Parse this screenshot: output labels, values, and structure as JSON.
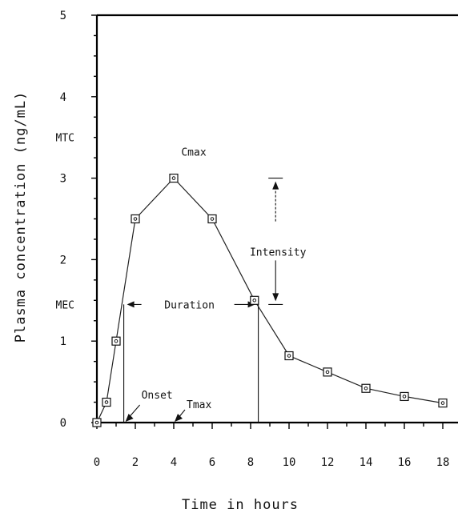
{
  "chart_data": {
    "type": "line",
    "title": "",
    "xlabel": "Time in hours",
    "ylabel": "Plasma concentration (ng/mL)",
    "xlim": [
      0,
      18
    ],
    "ylim": [
      0,
      5
    ],
    "x_ticks": [
      0,
      2,
      4,
      6,
      8,
      10,
      12,
      14,
      16,
      18
    ],
    "y_ticks": [
      0,
      1,
      2,
      3,
      4,
      5
    ],
    "grid": false,
    "series": [
      {
        "x": [
          0,
          0.5,
          1,
          2,
          4,
          6,
          8.2,
          10,
          12,
          14,
          16,
          18
        ],
        "y": [
          0,
          0.25,
          1.0,
          2.5,
          3.0,
          2.5,
          1.5,
          0.82,
          0.62,
          0.42,
          0.32,
          0.24
        ]
      }
    ],
    "annotations": {
      "mtc": {
        "label": "MTC",
        "y": 3.5
      },
      "mec": {
        "label": "MEC",
        "y": 1.45
      },
      "cmax": {
        "label": "Cmax",
        "x": 4,
        "y": 3.0
      },
      "duration": {
        "label": "Duration",
        "x_start": 1.4,
        "x_end": 8.4,
        "y": 1.45
      },
      "intensity": {
        "label": "Intensity",
        "x": 9.3,
        "y_top": 3.0,
        "y_bottom": 1.45
      },
      "onset": {
        "label": "Onset",
        "x": 1.4
      },
      "tmax": {
        "label": "Tmax",
        "x": 4
      }
    }
  }
}
